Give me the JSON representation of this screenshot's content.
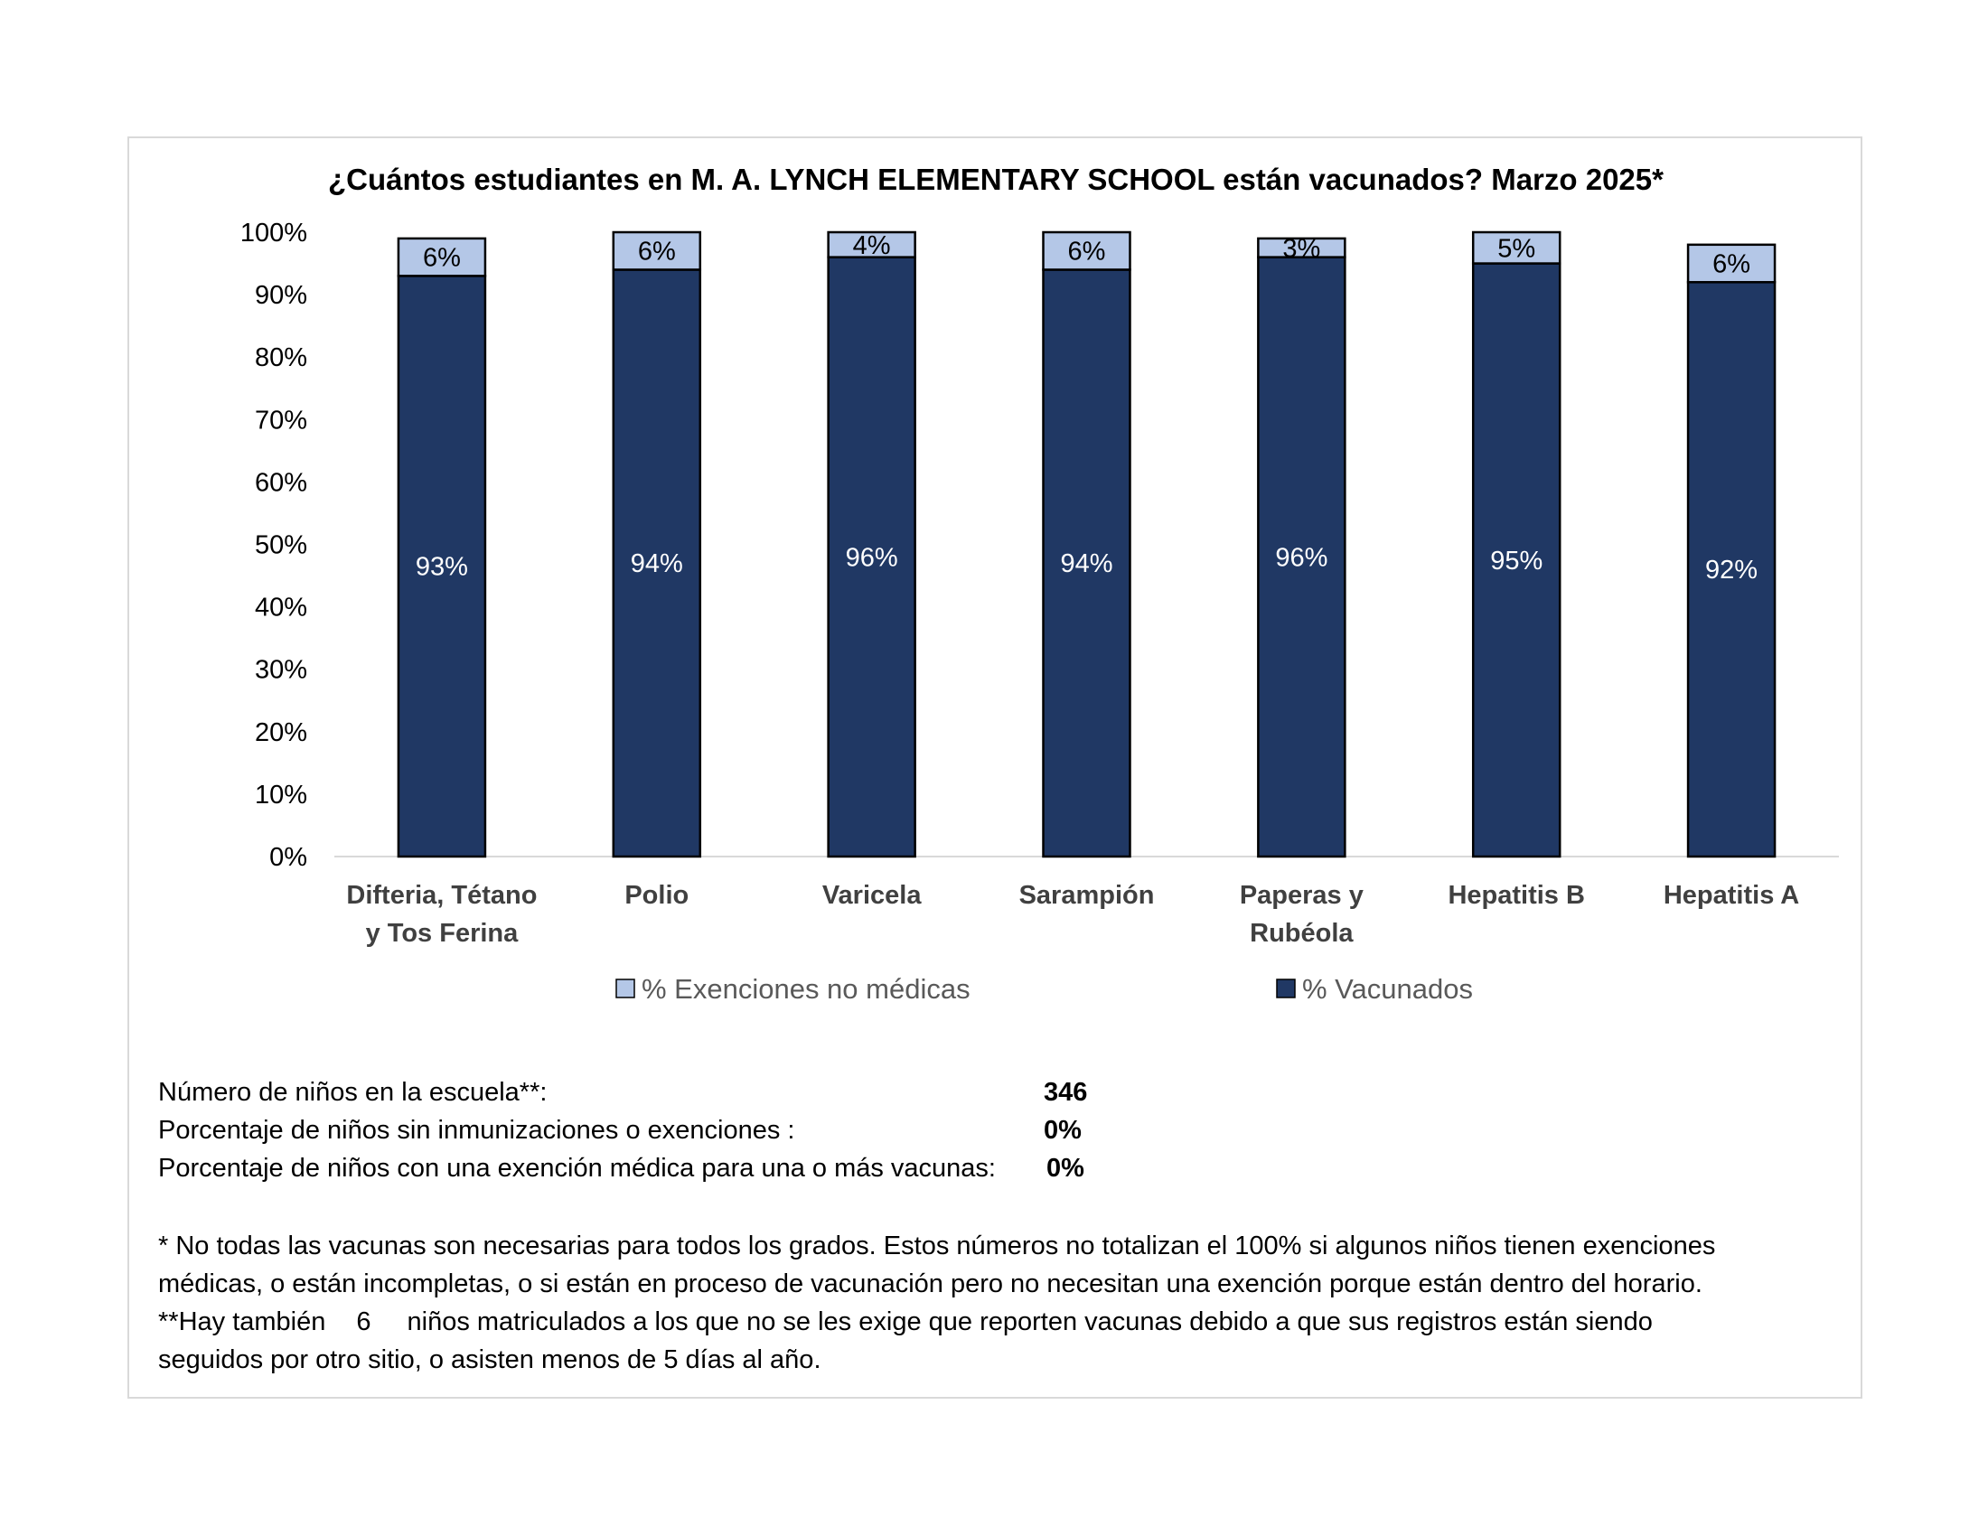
{
  "chart_data": {
    "type": "bar",
    "stacked": true,
    "title": "¿Cuántos estudiantes en M. A. LYNCH ELEMENTARY SCHOOL están vacunados? Marzo 2025*",
    "categories": [
      [
        "Difteria, Tétano",
        "y Tos Ferina"
      ],
      [
        "Polio"
      ],
      [
        "Varicela"
      ],
      [
        "Sarampión"
      ],
      [
        "Paperas y",
        "Rubéola"
      ],
      [
        "Hepatitis B"
      ],
      [
        "Hepatitis A"
      ]
    ],
    "series": [
      {
        "name": "% Vacunados",
        "color": "#203864",
        "values": [
          93,
          94,
          96,
          94,
          96,
          95,
          92
        ],
        "labels": [
          "93%",
          "94%",
          "96%",
          "94%",
          "96%",
          "95%",
          "92%"
        ]
      },
      {
        "name": "% Exenciones no médicas",
        "color": "#b4c7e7",
        "values": [
          6,
          6,
          4,
          6,
          3,
          5,
          6
        ],
        "labels": [
          "6%",
          "6%",
          "4%",
          "6%",
          "3%",
          "5%",
          "6%"
        ]
      }
    ],
    "legend_order": [
      1,
      0
    ],
    "y_ticks": [
      "0%",
      "10%",
      "20%",
      "30%",
      "40%",
      "50%",
      "60%",
      "70%",
      "80%",
      "90%",
      "100%"
    ],
    "ylim": [
      0,
      100
    ],
    "legend_position": "bottom",
    "grid": false
  },
  "stats": [
    {
      "label": "Número de niños en la escuela**:",
      "value": "346"
    },
    {
      "label": "Porcentaje de niños sin inmunizaciones o exenciones :",
      "value": "0%"
    },
    {
      "label": "Porcentaje de niños con una exención médica para una o más vacunas:",
      "value": "0%"
    }
  ],
  "notes": {
    "line1": "* No todas las vacunas son necesarias para todos los grados. Estos números no totalizan el  100% si algunos niños tienen exenciones",
    "line2": "médicas, o están incompletas, o si están en proceso de vacunación pero no necesitan una exención porque están dentro del horario.",
    "line3_prefix": "**Hay también",
    "line3_count": "6",
    "line3_suffix": "niños matriculados a los que no se les exige que reporten vacunas debido a que sus registros están siendo",
    "line4": "seguidos por otro sitio, o asisten menos de 5 días al año."
  }
}
